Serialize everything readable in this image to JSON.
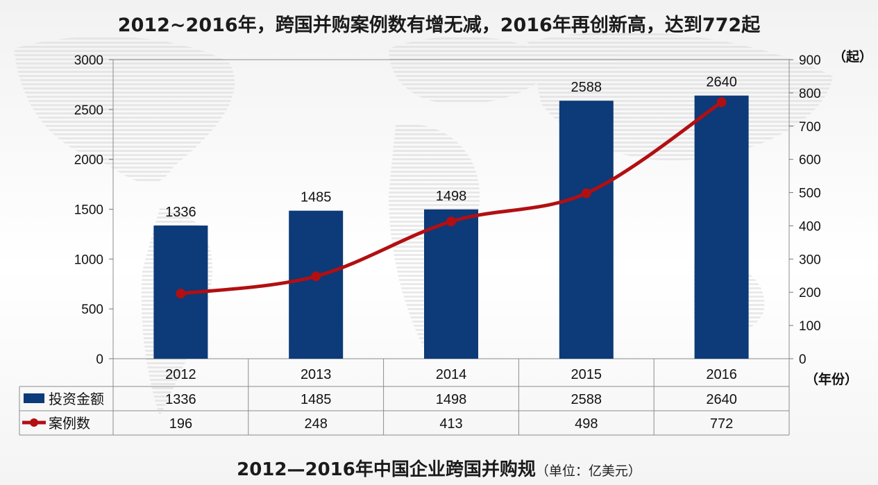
{
  "page": {
    "title": "2012~2016年，跨国并购案例数有增无减，2016年再创新高，达到772起",
    "bottom_title": "2012—2016年中国企业跨国并购规",
    "bottom_unit": "（单位：亿美元）"
  },
  "chart_data": {
    "type": "bar",
    "categories": [
      "2012",
      "2013",
      "2014",
      "2015",
      "2016"
    ],
    "series": [
      {
        "name": "投资金额",
        "type": "bar",
        "axis": "left",
        "color": "#0d3a78",
        "values": [
          1336,
          1485,
          1498,
          2588,
          2640
        ]
      },
      {
        "name": "案例数",
        "type": "line",
        "axis": "right",
        "color": "#b20f12",
        "values": [
          196,
          248,
          413,
          498,
          772
        ]
      }
    ],
    "y_left": {
      "min": 0,
      "max": 3000,
      "step": 500
    },
    "y_right": {
      "min": 0,
      "max": 900,
      "step": 100,
      "unit_label": "（起）"
    },
    "x_unit_label": "（年份）",
    "grid": false,
    "legend": "data-table"
  }
}
